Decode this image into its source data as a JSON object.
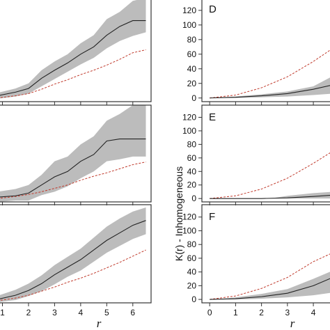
{
  "chart_data": [
    {
      "panel": "",
      "type": "line",
      "xlim": [
        0.8,
        6.7
      ],
      "ylim": [
        -5,
        138
      ],
      "x_ticks": [
        1,
        2,
        3,
        4,
        5,
        6
      ],
      "y_ticks": [],
      "show_x_labels": false,
      "series": [
        {
          "role": "envelope-upper",
          "x": [
            0.8,
            1.5,
            2.0,
            2.5,
            3.0,
            3.5,
            4.0,
            4.5,
            5.0,
            5.5,
            6.0,
            6.5
          ],
          "y": [
            7,
            13,
            20,
            38,
            50,
            60,
            75,
            86,
            108,
            118,
            133,
            137
          ]
        },
        {
          "role": "envelope-lower",
          "x": [
            0.8,
            1.5,
            2.0,
            2.5,
            3.0,
            3.5,
            4.0,
            4.5,
            5.0,
            5.5,
            6.0,
            6.5
          ],
          "y": [
            -1,
            2,
            6,
            16,
            26,
            36,
            46,
            55,
            68,
            78,
            85,
            90
          ]
        },
        {
          "role": "observed",
          "x": [
            0.8,
            1.5,
            2.0,
            2.5,
            3.0,
            3.5,
            4.0,
            4.5,
            5.0,
            5.5,
            6.0,
            6.5
          ],
          "y": [
            3,
            8,
            13,
            27,
            38,
            48,
            60,
            70,
            86,
            98,
            106,
            106
          ]
        },
        {
          "role": "expected",
          "x": [
            0.8,
            1.5,
            2.0,
            2.5,
            3.0,
            3.5,
            4.0,
            4.5,
            5.0,
            5.5,
            6.0,
            6.5
          ],
          "y": [
            0,
            3,
            6,
            12,
            19,
            25,
            32,
            38,
            45,
            53,
            62,
            66
          ]
        }
      ]
    },
    {
      "panel": "",
      "type": "line",
      "xlim": [
        0.8,
        6.7
      ],
      "ylim": [
        -5,
        138
      ],
      "x_ticks": [
        1,
        2,
        3,
        4,
        5,
        6
      ],
      "y_ticks": [],
      "show_x_labels": false,
      "series": [
        {
          "role": "envelope-upper",
          "x": [
            0.8,
            1.5,
            2.0,
            2.5,
            3.0,
            3.5,
            4.0,
            4.5,
            5.0,
            5.5,
            6.0,
            6.5
          ],
          "y": [
            10,
            14,
            20,
            35,
            55,
            62,
            80,
            92,
            115,
            125,
            138,
            138
          ]
        },
        {
          "role": "envelope-lower",
          "x": [
            0.8,
            1.5,
            2.0,
            2.5,
            3.0,
            3.5,
            4.0,
            4.5,
            5.0,
            5.5,
            6.0,
            6.5
          ],
          "y": [
            -5,
            -3,
            -3,
            5,
            10,
            18,
            30,
            40,
            55,
            58,
            62,
            62
          ]
        },
        {
          "role": "observed",
          "x": [
            0.8,
            1.5,
            2.0,
            2.5,
            3.0,
            3.5,
            4.0,
            4.5,
            5.0,
            5.5,
            6.0,
            6.5
          ],
          "y": [
            2,
            4,
            8,
            20,
            32,
            40,
            55,
            65,
            85,
            88,
            88,
            88
          ]
        },
        {
          "role": "expected",
          "x": [
            0.8,
            1.5,
            2.0,
            2.5,
            3.0,
            3.5,
            4.0,
            4.5,
            5.0,
            5.5,
            6.0,
            6.5
          ],
          "y": [
            0,
            3,
            6,
            10,
            15,
            20,
            27,
            33,
            38,
            44,
            50,
            54
          ]
        }
      ]
    },
    {
      "panel": "",
      "type": "line",
      "xlim": [
        0.8,
        6.7
      ],
      "ylim": [
        -5,
        138
      ],
      "x_ticks": [
        1,
        2,
        3,
        4,
        5,
        6
      ],
      "y_ticks": [],
      "show_x_labels": true,
      "series": [
        {
          "role": "envelope-upper",
          "x": [
            0.8,
            1.5,
            2.0,
            2.5,
            3.0,
            3.5,
            4.0,
            4.5,
            5.0,
            5.5,
            6.0,
            6.5
          ],
          "y": [
            5,
            14,
            23,
            35,
            50,
            62,
            74,
            90,
            106,
            118,
            128,
            134
          ]
        },
        {
          "role": "envelope-lower",
          "x": [
            0.8,
            1.5,
            2.0,
            2.5,
            3.0,
            3.5,
            4.0,
            4.5,
            5.0,
            5.5,
            6.0,
            6.5
          ],
          "y": [
            -4,
            -1,
            5,
            12,
            22,
            33,
            42,
            55,
            68,
            78,
            88,
            95
          ]
        },
        {
          "role": "observed",
          "x": [
            0.8,
            1.5,
            2.0,
            2.5,
            3.0,
            3.5,
            4.0,
            4.5,
            5.0,
            5.5,
            6.0,
            6.5
          ],
          "y": [
            0,
            6,
            13,
            23,
            36,
            47,
            58,
            72,
            86,
            97,
            108,
            115
          ]
        },
        {
          "role": "expected",
          "x": [
            0.8,
            1.5,
            2.0,
            2.5,
            3.0,
            3.5,
            4.0,
            4.5,
            5.0,
            5.5,
            6.0,
            6.5
          ],
          "y": [
            -2,
            2,
            6,
            12,
            18,
            25,
            31,
            38,
            46,
            54,
            63,
            72
          ]
        }
      ]
    },
    {
      "panel": "D",
      "type": "line",
      "xlim": [
        -0.3,
        4.75
      ],
      "ylim": [
        -5,
        138
      ],
      "x_ticks": [
        0,
        1,
        2,
        3,
        4
      ],
      "y_ticks": [
        0,
        20,
        40,
        60,
        80,
        100,
        120
      ],
      "show_x_labels": false,
      "series": [
        {
          "role": "envelope-upper",
          "x": [
            0,
            1,
            2,
            3,
            4,
            4.75
          ],
          "y": [
            0,
            2,
            5,
            9,
            16,
            30
          ]
        },
        {
          "role": "envelope-lower",
          "x": [
            0,
            1,
            2,
            3,
            4,
            4.75
          ],
          "y": [
            0,
            0,
            1,
            2,
            4,
            6
          ]
        },
        {
          "role": "observed",
          "x": [
            0,
            1,
            2,
            3,
            4,
            4.75
          ],
          "y": [
            0,
            1,
            3,
            6,
            12,
            18
          ]
        },
        {
          "role": "expected",
          "x": [
            0,
            1,
            2,
            3,
            4,
            4.75
          ],
          "y": [
            0,
            4,
            14,
            29,
            50,
            68
          ]
        }
      ]
    },
    {
      "panel": "E",
      "type": "line",
      "xlim": [
        -0.3,
        4.75
      ],
      "ylim": [
        -5,
        138
      ],
      "x_ticks": [
        0,
        1,
        2,
        3,
        4
      ],
      "y_ticks": [
        0,
        20,
        40,
        60,
        80,
        100,
        120
      ],
      "show_x_labels": false,
      "series": [
        {
          "role": "envelope-upper",
          "x": [
            0,
            1,
            2,
            2.5,
            3,
            4,
            4.75
          ],
          "y": [
            0,
            0,
            0,
            1,
            4,
            8,
            10
          ]
        },
        {
          "role": "envelope-lower",
          "x": [
            0,
            1,
            2,
            3,
            4,
            4.75
          ],
          "y": [
            0,
            0,
            0,
            0,
            0,
            0
          ]
        },
        {
          "role": "observed",
          "x": [
            0,
            1,
            2,
            3,
            4,
            4.75
          ],
          "y": [
            0,
            0,
            0,
            1,
            3,
            5
          ]
        },
        {
          "role": "expected",
          "x": [
            0,
            1,
            2,
            3,
            4,
            4.75
          ],
          "y": [
            0,
            4,
            14,
            30,
            52,
            70
          ]
        }
      ]
    },
    {
      "panel": "F",
      "type": "line",
      "xlim": [
        -0.3,
        4.75
      ],
      "ylim": [
        -5,
        138
      ],
      "x_ticks": [
        0,
        1,
        2,
        3,
        4
      ],
      "y_ticks": [
        0,
        20,
        40,
        60,
        80,
        100,
        120
      ],
      "show_x_labels": true,
      "series": [
        {
          "role": "envelope-upper",
          "x": [
            0,
            0.5,
            1,
            2,
            3,
            4,
            4.75
          ],
          "y": [
            0,
            1,
            3,
            8,
            15,
            30,
            42
          ]
        },
        {
          "role": "envelope-lower",
          "x": [
            0,
            1,
            2,
            3,
            4,
            4.75
          ],
          "y": [
            0,
            0,
            1,
            3,
            6,
            10
          ]
        },
        {
          "role": "observed",
          "x": [
            0,
            1,
            2,
            3,
            4,
            4.75
          ],
          "y": [
            0,
            1,
            4,
            9,
            20,
            32
          ]
        },
        {
          "role": "expected",
          "x": [
            0,
            1,
            2,
            3,
            4,
            4.75
          ],
          "y": [
            0,
            5,
            16,
            32,
            55,
            68
          ]
        }
      ]
    }
  ],
  "axis_titles": {
    "left_x": "r",
    "right_x": "r",
    "right_y": "K(r) - Inhomogeneous"
  },
  "colors": {
    "envelope": "#bcbcbc",
    "observed": "#222222",
    "expected": "#c0392b",
    "frame": "#333333"
  }
}
